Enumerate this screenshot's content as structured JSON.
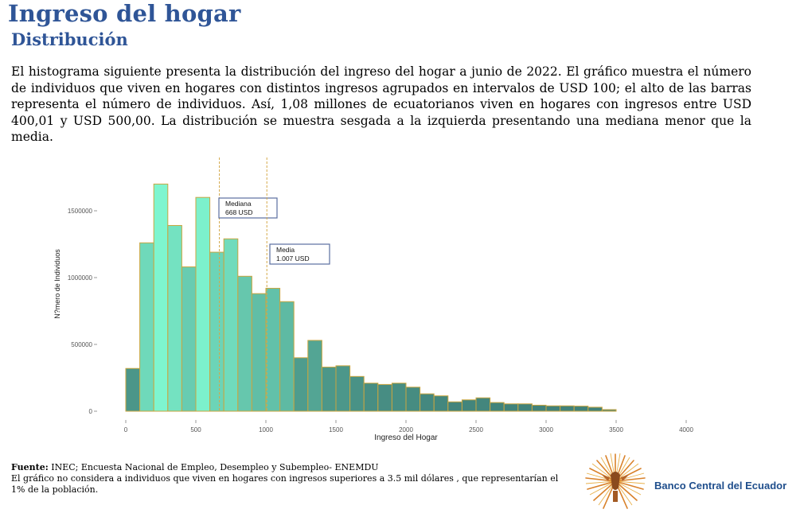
{
  "header": {
    "title": "Ingreso del hogar",
    "subtitle": "Distribución"
  },
  "description": "El histograma siguiente presenta la distribución del ingreso del hogar a junio de 2022. El gráfico muestra el número de individuos que viven en hogares con distintos ingresos agrupados en intervalos de USD 100; el alto de las barras representa el número de individuos. Así, 1,08 millones de ecuatorianos viven en hogares con ingresos entre USD 400,01 y USD 500,00. La distribución se muestra sesgada a la izquierda presentando una mediana menor que la media.",
  "chart_data": {
    "type": "bar",
    "xlabel": "Ingreso del Hogar",
    "ylabel": "N?mero de Individuos",
    "xlim": [
      0,
      4000
    ],
    "ylim": [
      0,
      1900000
    ],
    "xticks": [
      0,
      500,
      1000,
      1500,
      2000,
      2500,
      3000,
      3500,
      4000
    ],
    "yticks": [
      0,
      500000,
      1000000,
      1500000
    ],
    "bin_width": 100,
    "bin_starts": [
      0,
      100,
      200,
      300,
      400,
      500,
      600,
      700,
      800,
      900,
      1000,
      1100,
      1200,
      1300,
      1400,
      1500,
      1600,
      1700,
      1800,
      1900,
      2000,
      2100,
      2200,
      2300,
      2400,
      2500,
      2600,
      2700,
      2800,
      2900,
      3000,
      3100,
      3200,
      3300,
      3400
    ],
    "values": [
      320000,
      1260000,
      1700000,
      1390000,
      1080000,
      1600000,
      1190000,
      1290000,
      1010000,
      880000,
      920000,
      820000,
      400000,
      530000,
      330000,
      340000,
      260000,
      210000,
      200000,
      210000,
      180000,
      130000,
      115000,
      70000,
      85000,
      100000,
      65000,
      55000,
      55000,
      45000,
      40000,
      40000,
      38000,
      30000,
      12000
    ],
    "mean_line": {
      "value": 1007,
      "label": "Media",
      "value_label": "1.007 USD"
    },
    "median_line": {
      "value": 668,
      "label": "Mediana",
      "value_label": "668 USD"
    },
    "colors": {
      "low": "#7ef5cf",
      "high": "#3f7f78",
      "bar_border": "#c9a640",
      "ref_line": "#d4a84a"
    }
  },
  "footer": {
    "source_label": "Fuente:",
    "source_text": " INEC; Encuesta Nacional de Empleo, Desempleo y Subempleo- ENEMDU",
    "note": "El gráfico no considera  a individuos que viven en hogares con ingresos superiores a 3.5 mil dólares , que representarían el 1% de la población.",
    "bank_name": "Banco Central del Ecuador"
  }
}
